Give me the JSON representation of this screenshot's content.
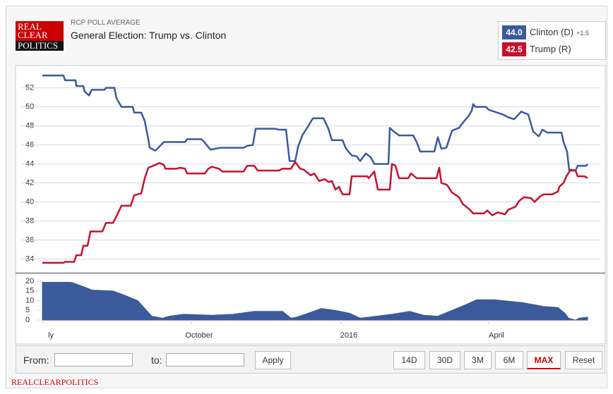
{
  "logo": [
    "REAL",
    "CLEAR",
    "POLITICS"
  ],
  "footer": "REALCLEARPOLITICS",
  "controls": {
    "from": "From:",
    "to": "to:",
    "apply": "Apply",
    "ranges": [
      "14D",
      "30D",
      "3M",
      "6M",
      "MAX",
      "Reset"
    ],
    "active": "MAX"
  },
  "chart_data": [
    {
      "type": "line",
      "kicker": "RCP POLL AVERAGE",
      "title": "General Election: Trump vs. Clinton",
      "xlim": [
        0,
        790
      ],
      "ylim": [
        32.7,
        54.2
      ],
      "yticks": [
        34,
        36,
        38,
        40,
        42,
        44,
        46,
        48,
        50,
        52
      ],
      "grid": true,
      "series": [
        {
          "name": "Clinton (D)",
          "color": "#3a5a9c",
          "latest": {
            "value": 44.0,
            "label": "44.0"
          },
          "lead": "+1.5",
          "x": [
            0,
            30,
            32,
            47,
            48,
            58,
            60,
            66,
            70,
            88,
            90,
            102,
            105,
            112,
            128,
            130,
            140,
            145,
            150,
            152,
            160,
            172,
            202,
            205,
            225,
            228,
            238,
            252,
            285,
            290,
            298,
            302,
            330,
            335,
            345,
            350,
            358,
            362,
            368,
            375,
            383,
            398,
            405,
            410,
            425,
            430,
            438,
            445,
            450,
            458,
            465,
            470,
            490,
            492,
            496,
            505,
            525,
            530,
            535,
            555,
            560,
            565,
            572,
            580,
            590,
            595,
            603,
            608,
            610,
            613,
            628,
            632,
            640,
            652,
            660,
            668,
            678,
            688,
            695,
            703,
            708,
            715,
            735,
            738,
            743,
            746,
            755,
            758,
            770,
            772
          ],
          "values": [
            53.3,
            53.3,
            52.8,
            52.8,
            52.2,
            52.2,
            51.6,
            51.2,
            51.8,
            51.8,
            52,
            52,
            50.9,
            50,
            50,
            49.4,
            49.4,
            48.5,
            46.6,
            45.7,
            45.4,
            46.3,
            46.3,
            46.6,
            46.6,
            46.4,
            45.5,
            45.7,
            45.7,
            45.9,
            46,
            47.7,
            47.7,
            47.6,
            47.6,
            44.3,
            44.3,
            45.8,
            47,
            47.8,
            48.8,
            48.8,
            47.7,
            46.5,
            46.5,
            45.6,
            44.9,
            44.8,
            44.3,
            45.1,
            44.7,
            44,
            44,
            47.8,
            47.5,
            47,
            47,
            46.3,
            45.3,
            45.3,
            46.8,
            45.6,
            45.7,
            47.5,
            47.8,
            48.3,
            49,
            49.6,
            50.3,
            50,
            50,
            49.7,
            49.5,
            49.2,
            48.9,
            48.7,
            49.5,
            49.2,
            47.4,
            46.9,
            47.6,
            47.3,
            47.3,
            46.3,
            45.3,
            43.3,
            43.3,
            43.8,
            43.8,
            44.0
          ]
        },
        {
          "name": "Trump (R)",
          "color": "#c8102e",
          "latest": {
            "value": 42.5,
            "label": "42.5"
          },
          "x": [
            0,
            30,
            32,
            45,
            48,
            55,
            58,
            64,
            68,
            85,
            90,
            100,
            105,
            112,
            125,
            130,
            140,
            145,
            150,
            160,
            166,
            172,
            174,
            190,
            195,
            202,
            205,
            230,
            235,
            240,
            250,
            255,
            285,
            290,
            300,
            305,
            335,
            340,
            352,
            358,
            365,
            370,
            380,
            385,
            392,
            400,
            405,
            410,
            415,
            420,
            425,
            435,
            438,
            460,
            462,
            470,
            475,
            492,
            495,
            500,
            505,
            518,
            522,
            530,
            558,
            562,
            565,
            573,
            580,
            590,
            595,
            605,
            610,
            625,
            630,
            637,
            645,
            655,
            660,
            670,
            675,
            682,
            692,
            697,
            705,
            710,
            722,
            730,
            732,
            738,
            742,
            748,
            755,
            758,
            768,
            772
          ],
          "values": [
            33.6,
            33.6,
            33.7,
            33.7,
            34.4,
            34.4,
            35.4,
            35.4,
            36.9,
            36.9,
            37.8,
            37.8,
            38.5,
            39.6,
            39.6,
            40.7,
            40.9,
            42.5,
            43.6,
            43.9,
            44.1,
            43.9,
            43.5,
            43.5,
            43.6,
            43.5,
            43.0,
            43.0,
            43.5,
            43.7,
            43.5,
            43.2,
            43.2,
            43.8,
            43.8,
            43.3,
            43.3,
            43.5,
            43.5,
            44.2,
            43.5,
            43.4,
            42.8,
            43.0,
            42.2,
            42.4,
            42.1,
            42.2,
            41.3,
            41.6,
            40.8,
            40.8,
            42.7,
            42.7,
            42.5,
            43.2,
            41.3,
            41.3,
            44.0,
            43.8,
            42.5,
            42.5,
            43.0,
            42.5,
            42.5,
            43.6,
            42.0,
            41.8,
            41.0,
            40.5,
            39.8,
            39.2,
            38.8,
            38.8,
            39.1,
            38.6,
            38.9,
            38.7,
            39.2,
            39.5,
            40.1,
            40.5,
            40.4,
            40.0,
            40.6,
            40.8,
            40.8,
            41.1,
            41.6,
            42.0,
            42.7,
            43.4,
            43.3,
            42.7,
            42.7,
            42.5
          ]
        }
      ]
    },
    {
      "type": "area",
      "xlim": [
        0,
        790
      ],
      "ylim": [
        -0.7,
        23.3
      ],
      "yticks": [
        0,
        5,
        10,
        15,
        20
      ],
      "color": "#3a5a9c",
      "xticks": [
        {
          "value": 1,
          "label": "ly"
        },
        {
          "value": 211,
          "label": "October"
        },
        {
          "value": 423,
          "label": "2016"
        },
        {
          "value": 632,
          "label": "April"
        }
      ],
      "x": [
        0,
        40,
        45,
        60,
        70,
        100,
        115,
        135,
        145,
        155,
        170,
        180,
        200,
        240,
        270,
        300,
        340,
        352,
        360,
        380,
        395,
        415,
        435,
        450,
        495,
        520,
        540,
        560,
        580,
        600,
        615,
        640,
        680,
        710,
        730,
        740,
        745,
        755,
        760,
        772
      ],
      "values": [
        19.5,
        19.5,
        19,
        17,
        15.5,
        15,
        13,
        10,
        6,
        2,
        1,
        2,
        3,
        2.5,
        3,
        4.5,
        4.5,
        1,
        1.5,
        4,
        6,
        5,
        3.5,
        1,
        3,
        4.5,
        2.5,
        2,
        5,
        8,
        10.5,
        10.5,
        9,
        7,
        6.5,
        3.5,
        1,
        0,
        1,
        1.5
      ]
    }
  ]
}
